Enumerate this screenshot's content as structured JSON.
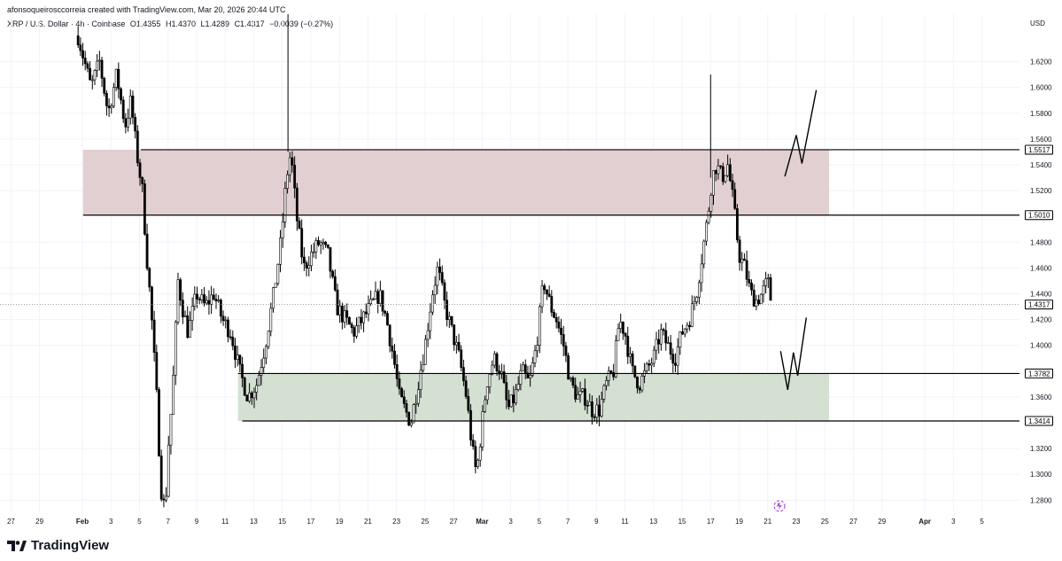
{
  "header": {
    "attribution": "afonsoqueirosccorreia created with TradingView.com, Mar 20, 2026 20:44 UTC",
    "symbol": "XRP / U.S. Dollar · 4h · Coinbase",
    "open": "O1.4355",
    "high": "H1.4370",
    "low": "L1.4289",
    "close": "C1.4317",
    "change": "−0.0039 (−0.27%)"
  },
  "brand": {
    "name": "TradingView",
    "logo_icon": "tradingview-logo-icon"
  },
  "colors": {
    "candle": "#000000",
    "resistance_zone": "#e2cfd2",
    "support_zone": "#d3e0d2",
    "grid": "#f0f3fa",
    "text": "#131722"
  },
  "chart_data": {
    "type": "candlestick",
    "symbol": "XRP / U.S. Dollar",
    "interval": "4h",
    "exchange": "Coinbase",
    "currency": "USD",
    "last_price": 1.4317,
    "ylim": [
      1.2706,
      1.6568
    ],
    "y_ticks": [
      "1.6200",
      "1.6000",
      "1.5800",
      "1.5600",
      "1.5400",
      "1.5200",
      "1.4800",
      "1.4600",
      "1.4400",
      "1.4200",
      "1.4000",
      "1.3600",
      "1.3200",
      "1.3000",
      "1.2800"
    ],
    "price_labels": [
      "1.5517",
      "1.5010",
      "1.4317",
      "1.3782",
      "1.3414"
    ],
    "x_ticks": [
      {
        "label": "27",
        "day": -5
      },
      {
        "label": "29",
        "day": -3
      },
      {
        "label": "Feb",
        "day": 0
      },
      {
        "label": "3",
        "day": 2
      },
      {
        "label": "5",
        "day": 4
      },
      {
        "label": "7",
        "day": 6
      },
      {
        "label": "9",
        "day": 8
      },
      {
        "label": "11",
        "day": 10
      },
      {
        "label": "13",
        "day": 12
      },
      {
        "label": "15",
        "day": 14
      },
      {
        "label": "17",
        "day": 16
      },
      {
        "label": "19",
        "day": 18
      },
      {
        "label": "21",
        "day": 20
      },
      {
        "label": "23",
        "day": 22
      },
      {
        "label": "25",
        "day": 24
      },
      {
        "label": "27",
        "day": 26
      },
      {
        "label": "Mar",
        "day": 28
      },
      {
        "label": "3",
        "day": 30
      },
      {
        "label": "5",
        "day": 32
      },
      {
        "label": "7",
        "day": 34
      },
      {
        "label": "9",
        "day": 36
      },
      {
        "label": "11",
        "day": 38
      },
      {
        "label": "13",
        "day": 40
      },
      {
        "label": "15",
        "day": 42
      },
      {
        "label": "17",
        "day": 44
      },
      {
        "label": "19",
        "day": 46
      },
      {
        "label": "21",
        "day": 48
      },
      {
        "label": "23",
        "day": 50
      },
      {
        "label": "25",
        "day": 52
      },
      {
        "label": "27",
        "day": 54
      },
      {
        "label": "29",
        "day": 56
      },
      {
        "label": "Apr",
        "day": 59
      },
      {
        "label": "3",
        "day": 61
      },
      {
        "label": "5",
        "day": 63
      }
    ],
    "zones": [
      {
        "name": "resistance",
        "top": 1.5517,
        "bottom": 1.501,
        "start_day": 0.05,
        "end_day": 52.3
      },
      {
        "name": "support",
        "top": 1.3782,
        "bottom": 1.3414,
        "start_day": 10.9,
        "end_day": 52.3
      }
    ],
    "levels": [
      {
        "price": 1.5517,
        "start_day": 4.1
      },
      {
        "price": 1.501,
        "start_day": 0.05
      },
      {
        "price": 1.3782,
        "start_day": 10.9
      },
      {
        "price": 1.3414,
        "start_day": 11.2
      }
    ],
    "projections": [
      [
        {
          "day": 49.2,
          "price": 1.531
        },
        {
          "day": 50.0,
          "price": 1.563
        },
        {
          "day": 50.4,
          "price": 1.541
        },
        {
          "day": 51.4,
          "price": 1.598
        }
      ],
      [
        {
          "day": 48.9,
          "price": 1.3955
        },
        {
          "day": 49.4,
          "price": 1.3655
        },
        {
          "day": 49.8,
          "price": 1.3945
        },
        {
          "day": 50.1,
          "price": 1.3765
        },
        {
          "day": 50.7,
          "price": 1.4215
        }
      ]
    ],
    "price_path": [
      {
        "day": -0.3,
        "price": 1.64
      },
      {
        "day": 0.6,
        "price": 1.6
      },
      {
        "day": 1.2,
        "price": 1.62
      },
      {
        "day": 1.8,
        "price": 1.58
      },
      {
        "day": 2.4,
        "price": 1.61
      },
      {
        "day": 3.0,
        "price": 1.57
      },
      {
        "day": 3.4,
        "price": 1.59
      },
      {
        "day": 3.8,
        "price": 1.55
      },
      {
        "day": 4.2,
        "price": 1.52
      },
      {
        "day": 4.5,
        "price": 1.47
      },
      {
        "day": 4.8,
        "price": 1.43
      },
      {
        "day": 5.2,
        "price": 1.36
      },
      {
        "day": 5.5,
        "price": 1.29
      },
      {
        "day": 5.8,
        "price": 1.27
      },
      {
        "day": 6.0,
        "price": 1.32
      },
      {
        "day": 6.3,
        "price": 1.36
      },
      {
        "day": 6.7,
        "price": 1.45
      },
      {
        "day": 7.0,
        "price": 1.43
      },
      {
        "day": 7.4,
        "price": 1.41
      },
      {
        "day": 8.0,
        "price": 1.44
      },
      {
        "day": 8.6,
        "price": 1.43
      },
      {
        "day": 9.2,
        "price": 1.44
      },
      {
        "day": 9.8,
        "price": 1.42
      },
      {
        "day": 10.4,
        "price": 1.41
      },
      {
        "day": 11.0,
        "price": 1.38
      },
      {
        "day": 11.6,
        "price": 1.36
      },
      {
        "day": 12.2,
        "price": 1.37
      },
      {
        "day": 12.8,
        "price": 1.4
      },
      {
        "day": 13.4,
        "price": 1.44
      },
      {
        "day": 13.9,
        "price": 1.48
      },
      {
        "day": 14.3,
        "price": 1.53
      },
      {
        "day": 14.6,
        "price": 1.55
      },
      {
        "day": 15.0,
        "price": 1.5
      },
      {
        "day": 15.5,
        "price": 1.46
      },
      {
        "day": 16.0,
        "price": 1.47
      },
      {
        "day": 16.6,
        "price": 1.48
      },
      {
        "day": 17.2,
        "price": 1.47
      },
      {
        "day": 17.8,
        "price": 1.43
      },
      {
        "day": 18.4,
        "price": 1.42
      },
      {
        "day": 19.0,
        "price": 1.41
      },
      {
        "day": 19.6,
        "price": 1.42
      },
      {
        "day": 20.2,
        "price": 1.43
      },
      {
        "day": 20.8,
        "price": 1.44
      },
      {
        "day": 21.3,
        "price": 1.42
      },
      {
        "day": 21.8,
        "price": 1.39
      },
      {
        "day": 22.2,
        "price": 1.36
      },
      {
        "day": 22.6,
        "price": 1.35
      },
      {
        "day": 23.0,
        "price": 1.34
      },
      {
        "day": 23.5,
        "price": 1.37
      },
      {
        "day": 24.0,
        "price": 1.4
      },
      {
        "day": 24.5,
        "price": 1.44
      },
      {
        "day": 24.9,
        "price": 1.46
      },
      {
        "day": 25.4,
        "price": 1.43
      },
      {
        "day": 25.9,
        "price": 1.41
      },
      {
        "day": 26.4,
        "price": 1.39
      },
      {
        "day": 26.9,
        "price": 1.36
      },
      {
        "day": 27.3,
        "price": 1.32
      },
      {
        "day": 27.6,
        "price": 1.3
      },
      {
        "day": 27.9,
        "price": 1.33
      },
      {
        "day": 28.3,
        "price": 1.37
      },
      {
        "day": 28.8,
        "price": 1.39
      },
      {
        "day": 29.3,
        "price": 1.38
      },
      {
        "day": 29.8,
        "price": 1.35
      },
      {
        "day": 30.3,
        "price": 1.36
      },
      {
        "day": 30.8,
        "price": 1.38
      },
      {
        "day": 31.3,
        "price": 1.37
      },
      {
        "day": 31.8,
        "price": 1.4
      },
      {
        "day": 32.3,
        "price": 1.45
      },
      {
        "day": 32.8,
        "price": 1.43
      },
      {
        "day": 33.2,
        "price": 1.42
      },
      {
        "day": 33.7,
        "price": 1.4
      },
      {
        "day": 34.2,
        "price": 1.37
      },
      {
        "day": 34.7,
        "price": 1.36
      },
      {
        "day": 35.2,
        "price": 1.36
      },
      {
        "day": 35.7,
        "price": 1.35
      },
      {
        "day": 36.2,
        "price": 1.35
      },
      {
        "day": 36.7,
        "price": 1.37
      },
      {
        "day": 37.2,
        "price": 1.38
      },
      {
        "day": 37.6,
        "price": 1.42
      },
      {
        "day": 38.0,
        "price": 1.41
      },
      {
        "day": 38.5,
        "price": 1.38
      },
      {
        "day": 39.0,
        "price": 1.37
      },
      {
        "day": 39.5,
        "price": 1.38
      },
      {
        "day": 40.0,
        "price": 1.39
      },
      {
        "day": 40.5,
        "price": 1.41
      },
      {
        "day": 41.0,
        "price": 1.4
      },
      {
        "day": 41.5,
        "price": 1.39
      },
      {
        "day": 42.0,
        "price": 1.41
      },
      {
        "day": 42.5,
        "price": 1.42
      },
      {
        "day": 43.0,
        "price": 1.44
      },
      {
        "day": 43.4,
        "price": 1.47
      },
      {
        "day": 43.8,
        "price": 1.5
      },
      {
        "day": 44.1,
        "price": 1.53
      },
      {
        "day": 44.4,
        "price": 1.54
      },
      {
        "day": 44.8,
        "price": 1.53
      },
      {
        "day": 45.2,
        "price": 1.54
      },
      {
        "day": 45.6,
        "price": 1.51
      },
      {
        "day": 46.0,
        "price": 1.47
      },
      {
        "day": 46.4,
        "price": 1.46
      },
      {
        "day": 46.8,
        "price": 1.44
      },
      {
        "day": 47.2,
        "price": 1.435
      },
      {
        "day": 47.6,
        "price": 1.44
      },
      {
        "day": 48.0,
        "price": 1.45
      },
      {
        "day": 48.3,
        "price": 1.43
      }
    ]
  }
}
